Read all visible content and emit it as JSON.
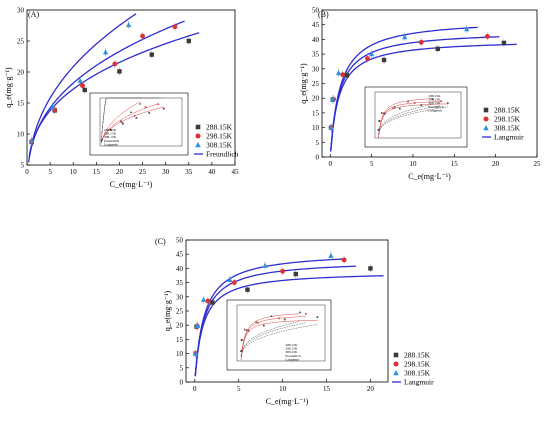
{
  "chart_data": [
    {
      "panel": "(A)",
      "type": "scatter",
      "xlabel": "C_e(mg·L⁻¹)",
      "ylabel": "q_e(mg·g⁻¹)",
      "xlim": [
        0,
        45
      ],
      "ylim": [
        5,
        30
      ],
      "xticks": [
        0,
        5,
        10,
        15,
        20,
        25,
        30,
        35,
        40,
        45
      ],
      "yticks": [
        5,
        10,
        15,
        20,
        25,
        30
      ],
      "grid": false,
      "legend_position": "bottom-right",
      "fit_label": "Freundlich",
      "series": [
        {
          "name": "288.15K",
          "marker": "square",
          "color": "#3a3a3a",
          "x": [
            1.0,
            6.0,
            12.5,
            20.0,
            27.0,
            35.0
          ],
          "y": [
            8.7,
            13.8,
            17.1,
            20.1,
            22.8,
            25.0
          ]
        },
        {
          "name": "298.15K",
          "marker": "circle",
          "color": "#e03030",
          "x": [
            1.0,
            6.0,
            12.0,
            19.0,
            25.0,
            32.0
          ],
          "y": [
            8.8,
            13.9,
            17.8,
            21.3,
            25.8,
            27.3
          ]
        },
        {
          "name": "308.15K",
          "marker": "triangle",
          "color": "#2f8fe0",
          "x": [
            1.0,
            5.5,
            11.5,
            17.0,
            22.0
          ],
          "y": [
            8.9,
            14.3,
            18.6,
            23.2,
            27.6
          ]
        }
      ],
      "fits": [
        {
          "series": "288.15K",
          "type": "freundlich",
          "K": 8.2,
          "n": 3.1
        },
        {
          "series": "298.15K",
          "type": "freundlich",
          "K": 8.0,
          "n": 2.8
        },
        {
          "series": "308.15K",
          "type": "freundlich",
          "K": 8.3,
          "n": 2.5
        }
      ]
    },
    {
      "panel": "(B)",
      "type": "scatter",
      "xlabel": "C_e(mg·L⁻¹)",
      "ylabel": "q_e(mg·g⁻¹)",
      "xlim": [
        -1,
        25
      ],
      "ylim": [
        0,
        50
      ],
      "xticks": [
        0,
        5,
        10,
        15,
        20,
        25
      ],
      "yticks": [
        0,
        5,
        10,
        15,
        20,
        25,
        30,
        35,
        40,
        45,
        50
      ],
      "grid": false,
      "legend_position": "right",
      "fit_label": "Langmuir",
      "series": [
        {
          "name": "288.15K",
          "marker": "square",
          "color": "#3a3a3a",
          "x": [
            0.1,
            0.3,
            2.0,
            6.5,
            13.0,
            21.0
          ],
          "y": [
            10.0,
            19.5,
            27.8,
            33.0,
            36.8,
            38.8
          ]
        },
        {
          "name": "298.15K",
          "marker": "circle",
          "color": "#e03030",
          "x": [
            0.1,
            0.4,
            1.5,
            4.5,
            11.0,
            19.0
          ],
          "y": [
            10.0,
            19.6,
            28.0,
            33.5,
            39.0,
            41.0
          ]
        },
        {
          "name": "308.15K",
          "marker": "triangle",
          "color": "#2f8fe0",
          "x": [
            0.1,
            0.3,
            1.0,
            5.0,
            9.0,
            16.5
          ],
          "y": [
            10.0,
            19.7,
            28.6,
            35.0,
            40.8,
            43.5
          ]
        }
      ],
      "fits": [
        {
          "series": "288.15K",
          "type": "langmuir",
          "qm": 40,
          "KL": 1.0
        },
        {
          "series": "298.15K",
          "type": "langmuir",
          "qm": 43,
          "KL": 0.95
        },
        {
          "series": "308.15K",
          "type": "langmuir",
          "qm": 47,
          "KL": 0.85
        }
      ]
    },
    {
      "panel": "(C)",
      "type": "scatter",
      "xlabel": "C_e(mg·L⁻¹)",
      "ylabel": "q_e(mg·g⁻¹)",
      "xlim": [
        -1,
        22
      ],
      "ylim": [
        0,
        50
      ],
      "xticks": [
        0,
        5,
        10,
        15,
        20
      ],
      "yticks": [
        0,
        5,
        10,
        15,
        20,
        25,
        30,
        35,
        40,
        45,
        50
      ],
      "grid": false,
      "legend_position": "right",
      "fit_label": "Langmuir",
      "series": [
        {
          "name": "288.15K",
          "marker": "square",
          "color": "#3a3a3a",
          "x": [
            0.1,
            0.2,
            2.0,
            6.0,
            11.5,
            20.0
          ],
          "y": [
            10.0,
            19.5,
            28.0,
            32.5,
            38.0,
            40.0
          ]
        },
        {
          "name": "298.15K",
          "marker": "circle",
          "color": "#e03030",
          "x": [
            0.1,
            0.3,
            1.5,
            4.5,
            10.0,
            17.0
          ],
          "y": [
            10.0,
            19.6,
            28.5,
            35.0,
            39.0,
            43.0
          ]
        },
        {
          "name": "308.15K",
          "marker": "triangle",
          "color": "#2f8fe0",
          "x": [
            0.1,
            0.3,
            1.0,
            4.0,
            8.0,
            15.5
          ],
          "y": [
            10.0,
            19.8,
            29.0,
            36.0,
            41.0,
            44.5
          ]
        }
      ],
      "fits": [
        {
          "series": "288.15K",
          "type": "langmuir",
          "qm": 39,
          "KL": 1.1
        },
        {
          "series": "298.15K",
          "type": "langmuir",
          "qm": 43,
          "KL": 1.0
        },
        {
          "series": "308.15K",
          "type": "langmuir",
          "qm": 46,
          "KL": 0.95
        }
      ]
    }
  ],
  "insets": [
    {
      "panel": "(A)",
      "legend": [
        "288.15K",
        "298.15K",
        "308.15K",
        "Freundlich",
        "Langmuir"
      ]
    },
    {
      "panel": "(B)",
      "legend": [
        "288.15K",
        "298.15K",
        "308.15K",
        "Freundlich",
        "Langmuir"
      ]
    },
    {
      "panel": "(C)",
      "legend": [
        "288.15K",
        "298.15K",
        "308.15K",
        "Freundlich",
        "Langmuir"
      ]
    }
  ]
}
